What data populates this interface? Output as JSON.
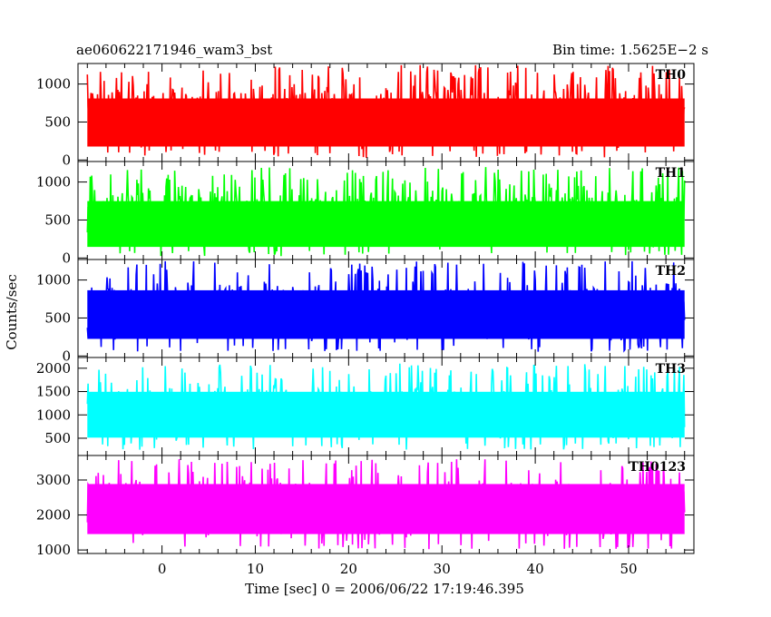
{
  "title_left": "ae060622171946_wam3_bst",
  "title_right": "Bin time: 1.5625E−2 s",
  "xlabel": "Time [sec] 0 = 2006/06/22 17:19:46.395",
  "ylabel": "Counts/sec",
  "chart_data": {
    "type": "line",
    "title": "ae060622171946_wam3_bst",
    "subtitle": "Bin time: 1.5625E−2 s",
    "xlabel": "Time [sec] 0 = 2006/06/22 17:19:46.395",
    "ylabel": "Counts/sec",
    "xlim": [
      -9,
      57
    ],
    "data_x_range": [
      -8,
      56
    ],
    "x_ticks": [
      0,
      10,
      20,
      30,
      40,
      50
    ],
    "x_tick_labels": [
      "0",
      "10",
      "20",
      "30",
      "40",
      "50"
    ],
    "grid": false,
    "panels": [
      {
        "name": "TH0",
        "color": "#ff0000",
        "ylim": [
          -20,
          1270
        ],
        "yticks": [
          0,
          500,
          1000
        ],
        "ytick_labels": [
          "0",
          "500",
          "1000"
        ],
        "mean": 450,
        "min_typical": 30,
        "max_typical": 1250
      },
      {
        "name": "TH1",
        "color": "#00ff00",
        "ylim": [
          -20,
          1270
        ],
        "yticks": [
          0,
          500,
          1000
        ],
        "ytick_labels": [
          "0",
          "500",
          "1000"
        ],
        "mean": 380,
        "min_typical": 20,
        "max_typical": 1200
      },
      {
        "name": "TH2",
        "color": "#0000ff",
        "ylim": [
          -20,
          1270
        ],
        "yticks": [
          0,
          500,
          1000
        ],
        "ytick_labels": [
          "0",
          "500",
          "1000"
        ],
        "mean": 550,
        "min_typical": 50,
        "max_typical": 1250
      },
      {
        "name": "TH3",
        "color": "#00ffff",
        "ylim": [
          130,
          2230
        ],
        "yticks": [
          500,
          1000,
          1500,
          2000
        ],
        "ytick_labels": [
          "500",
          "1000",
          "1500",
          "2000"
        ],
        "mean": 1000,
        "min_typical": 250,
        "max_typical": 2100
      },
      {
        "name": "TH0123",
        "color": "#ff00ff",
        "ylim": [
          900,
          3700
        ],
        "yticks": [
          1000,
          2000,
          3000
        ],
        "ytick_labels": [
          "1000",
          "2000",
          "3000"
        ],
        "mean": 2300,
        "min_typical": 1000,
        "max_typical": 3600
      }
    ]
  }
}
